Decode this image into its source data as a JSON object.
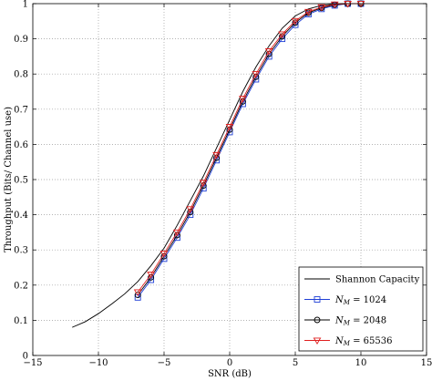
{
  "chart_data": {
    "type": "line",
    "xlabel": "SNR (dB)",
    "ylabel": "Throughput (Bits/ Channel use)",
    "xlim": [
      -15,
      15
    ],
    "ylim": [
      0,
      1
    ],
    "x_ticks": [
      -15,
      -10,
      -5,
      0,
      5,
      10,
      15
    ],
    "y_ticks": [
      0,
      0.1,
      0.2,
      0.3,
      0.4,
      0.5,
      0.6,
      0.7,
      0.8,
      0.9,
      1
    ],
    "grid": "dotted",
    "legend_position": "bottom-right",
    "series": [
      {
        "name": "Shannon Capacity",
        "color": "#000000",
        "marker": "none",
        "x": [
          -12,
          -11,
          -10,
          -9,
          -8,
          -7,
          -6,
          -5,
          -4,
          -3,
          -2,
          -1,
          0,
          1,
          2,
          3,
          4,
          5,
          6,
          7,
          8,
          9,
          10
        ],
        "y": [
          0.08,
          0.096,
          0.119,
          0.146,
          0.175,
          0.21,
          0.255,
          0.305,
          0.37,
          0.44,
          0.51,
          0.59,
          0.67,
          0.75,
          0.82,
          0.88,
          0.93,
          0.965,
          0.985,
          0.995,
          0.999,
          1.0,
          1.0
        ]
      },
      {
        "name": "N_M = 1024",
        "legend_prefix": "N",
        "legend_sub": "M",
        "legend_value": " = 1024",
        "color": "#1f3fd6",
        "marker": "square",
        "x": [
          -7,
          -6,
          -5,
          -4,
          -3,
          -2,
          -1,
          0,
          1,
          2,
          3,
          4,
          5,
          6,
          7,
          8,
          9,
          10
        ],
        "y": [
          0.165,
          0.215,
          0.275,
          0.335,
          0.4,
          0.475,
          0.555,
          0.635,
          0.715,
          0.785,
          0.85,
          0.9,
          0.94,
          0.97,
          0.985,
          0.995,
          1.0,
          1.0
        ]
      },
      {
        "name": "N_M = 2048",
        "legend_prefix": "N",
        "legend_sub": "M",
        "legend_value": " = 2048",
        "color": "#000000",
        "marker": "circle",
        "x": [
          -7,
          -6,
          -5,
          -4,
          -3,
          -2,
          -1,
          0,
          1,
          2,
          3,
          4,
          5,
          6,
          7,
          8,
          9,
          10
        ],
        "y": [
          0.172,
          0.222,
          0.282,
          0.342,
          0.408,
          0.483,
          0.562,
          0.642,
          0.722,
          0.792,
          0.857,
          0.907,
          0.946,
          0.974,
          0.988,
          0.997,
          1.0,
          1.0
        ]
      },
      {
        "name": "N_M = 65536",
        "legend_prefix": "N",
        "legend_sub": "M",
        "legend_value": " = 65536",
        "color": "#e01f1f",
        "marker": "triangle-down",
        "x": [
          -7,
          -6,
          -5,
          -4,
          -3,
          -2,
          -1,
          0,
          1,
          2,
          3,
          4,
          5,
          6,
          7,
          8,
          9,
          10
        ],
        "y": [
          0.18,
          0.23,
          0.29,
          0.35,
          0.416,
          0.491,
          0.57,
          0.65,
          0.73,
          0.8,
          0.865,
          0.913,
          0.951,
          0.977,
          0.99,
          0.998,
          1.0,
          1.0
        ]
      }
    ]
  }
}
